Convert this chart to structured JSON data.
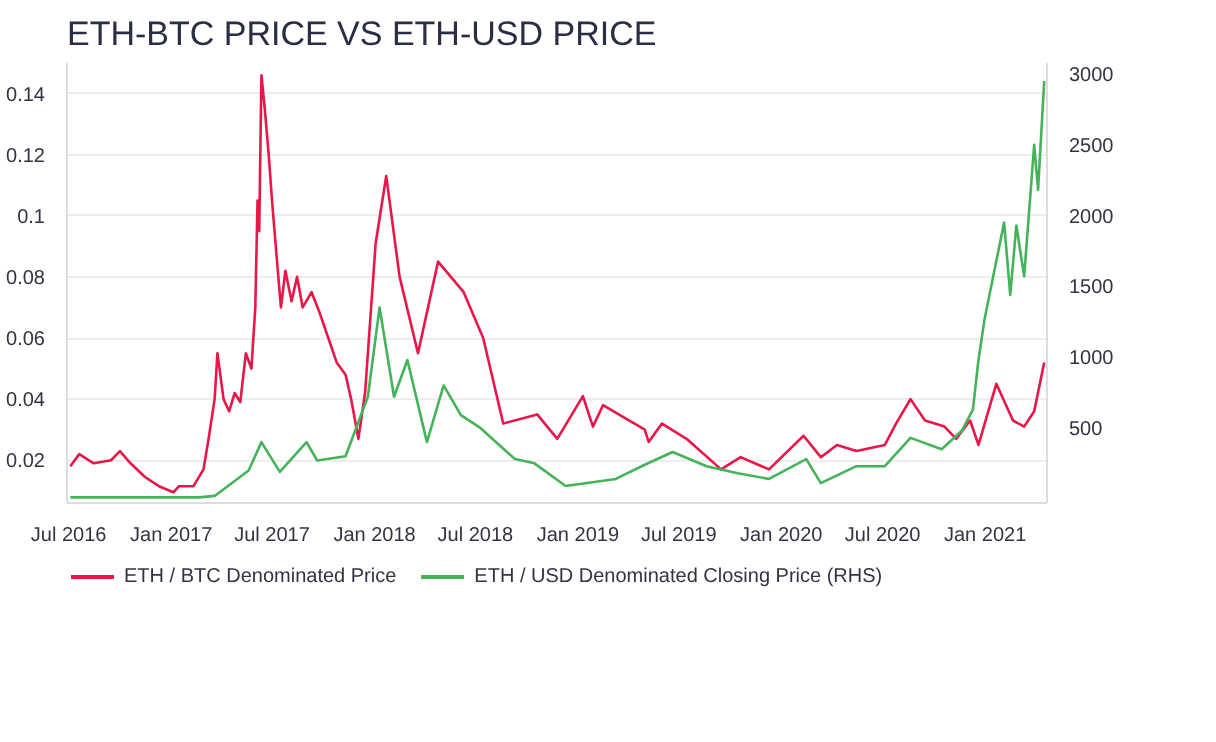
{
  "chart_data": {
    "type": "line",
    "title": "ETH-BTC PRICE VS ETH-USD PRICE",
    "x": [
      "2016-07-04",
      "2016-07-20",
      "2016-08-15",
      "2016-09-15",
      "2016-10-01",
      "2016-10-20",
      "2016-11-15",
      "2016-12-10",
      "2017-01-05",
      "2017-01-15",
      "2017-02-10",
      "2017-02-28",
      "2017-03-10",
      "2017-03-20",
      "2017-03-25",
      "2017-04-05",
      "2017-04-15",
      "2017-04-25",
      "2017-05-05",
      "2017-05-15",
      "2017-05-25",
      "2017-06-01",
      "2017-06-05",
      "2017-06-08",
      "2017-06-12",
      "2017-06-18",
      "2017-06-25",
      "2017-07-01",
      "2017-07-10",
      "2017-07-17",
      "2017-07-25",
      "2017-08-05",
      "2017-08-15",
      "2017-08-25",
      "2017-09-10",
      "2017-09-25",
      "2017-10-10",
      "2017-10-25",
      "2017-11-10",
      "2017-11-20",
      "2017-12-03",
      "2017-12-15",
      "2018-01-03",
      "2018-01-22",
      "2018-02-15",
      "2018-03-20",
      "2018-04-25",
      "2018-06-10",
      "2018-07-15",
      "2018-08-20",
      "2018-10-20",
      "2018-11-25",
      "2019-01-10",
      "2019-01-28",
      "2019-02-15",
      "2019-05-01",
      "2019-05-08",
      "2019-06-01",
      "2019-07-15",
      "2019-09-15",
      "2019-10-20",
      "2019-12-10",
      "2020-02-10",
      "2020-03-12",
      "2020-04-10",
      "2020-05-15",
      "2020-07-05",
      "2020-07-25",
      "2020-08-20",
      "2020-09-15",
      "2020-10-20",
      "2020-11-10",
      "2020-12-05",
      "2020-12-20",
      "2021-01-21",
      "2021-02-20",
      "2021-03-12",
      "2021-03-30",
      "2021-04-17"
    ],
    "xlim": [
      "2016-06-28",
      "2021-04-22"
    ],
    "xticks": [
      {
        "value": "2016-07-01",
        "label": "Jul 2016"
      },
      {
        "value": "2017-01-01",
        "label": "Jan 2017"
      },
      {
        "value": "2017-07-01",
        "label": "Jul 2017"
      },
      {
        "value": "2018-01-01",
        "label": "Jan 2018"
      },
      {
        "value": "2018-07-01",
        "label": "Jul 2018"
      },
      {
        "value": "2019-01-01",
        "label": "Jan 2019"
      },
      {
        "value": "2019-07-01",
        "label": "Jul 2019"
      },
      {
        "value": "2020-01-01",
        "label": "Jan 2020"
      },
      {
        "value": "2020-07-01",
        "label": "Jul 2020"
      },
      {
        "value": "2021-01-01",
        "label": "Jan 2021"
      }
    ],
    "ylim": [
      0.006,
      0.15
    ],
    "yticks": [
      0.02,
      0.04,
      0.06,
      0.08,
      0.1,
      0.12,
      0.14
    ],
    "y2lim": [
      -30,
      3077
    ],
    "y2ticks": [
      500,
      1000,
      1500,
      2000,
      2500,
      3000
    ],
    "grid": "y",
    "legend": "bottom",
    "series": [
      {
        "name": "ETH / BTC Denominated Price",
        "color": "#e8174a",
        "values": [
          0.018,
          0.022,
          0.019,
          0.02,
          0.023,
          0.019,
          0.0145,
          0.0115,
          0.0095,
          0.0115,
          0.0115,
          0.017,
          0.028,
          0.04,
          0.055,
          0.04,
          0.036,
          0.042,
          0.039,
          0.055,
          0.05,
          0.07,
          0.105,
          0.095,
          0.146,
          0.135,
          0.12,
          0.105,
          0.085,
          0.07,
          0.082,
          0.072,
          0.08,
          0.07,
          0.075,
          0.068,
          0.06,
          0.052,
          0.048,
          0.04,
          0.027,
          0.042,
          0.091,
          0.113,
          0.08,
          0.055,
          0.085,
          0.075,
          0.06,
          0.032,
          0.035,
          0.027,
          0.041,
          0.031,
          0.038,
          0.03,
          0.026,
          0.032,
          0.027,
          0.017,
          0.021,
          0.017,
          0.028,
          0.021,
          0.025,
          0.023,
          0.025,
          0.032,
          0.04,
          0.033,
          0.031,
          0.027,
          0.033,
          0.025,
          0.045,
          0.033,
          0.031,
          0.036,
          0.052
        ]
      },
      {
        "name": "ETH / USD Denominated Closing Price (RHS)",
        "color": "#45b35a",
        "axis": "y2",
        "x": [
          "2016-07-04",
          "2016-10-01",
          "2017-01-05",
          "2017-02-20",
          "2017-03-20",
          "2017-05-20",
          "2017-06-12",
          "2017-07-15",
          "2017-09-01",
          "2017-09-20",
          "2017-11-10",
          "2017-12-20",
          "2018-01-10",
          "2018-02-05",
          "2018-03-01",
          "2018-04-05",
          "2018-05-05",
          "2018-06-05",
          "2018-07-10",
          "2018-09-10",
          "2018-10-15",
          "2018-12-10",
          "2019-03-10",
          "2019-05-01",
          "2019-06-20",
          "2019-08-20",
          "2019-10-15",
          "2019-12-10",
          "2020-02-15",
          "2020-03-12",
          "2020-05-15",
          "2020-07-05",
          "2020-08-20",
          "2020-10-15",
          "2020-11-20",
          "2020-12-10",
          "2020-12-20",
          "2020-12-31",
          "2021-02-04",
          "2021-02-15",
          "2021-02-26",
          "2021-03-12",
          "2021-03-30",
          "2021-04-06",
          "2021-04-17"
        ],
        "values": [
          10,
          10,
          10,
          10,
          20,
          200,
          400,
          190,
          400,
          270,
          300,
          720,
          1350,
          720,
          980,
          400,
          800,
          590,
          500,
          280,
          250,
          90,
          140,
          240,
          330,
          230,
          180,
          140,
          280,
          110,
          230,
          230,
          430,
          350,
          480,
          630,
          980,
          1270,
          1950,
          1440,
          1930,
          1570,
          2500,
          2180,
          2950
        ]
      }
    ]
  }
}
